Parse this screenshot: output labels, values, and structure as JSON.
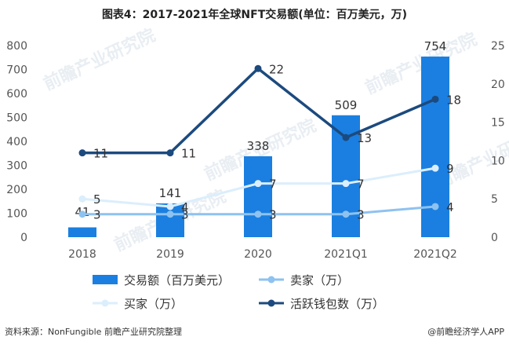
{
  "title": "图表4：2017-2021年全球NFT交易额(单位：百万美元，万)",
  "source": "资料来源：NonFungible 前瞻产业研究院整理",
  "brand": "@前瞻经济学人APP",
  "watermark": "前瞻产业研究院",
  "colors": {
    "bar": "#1a7fe0",
    "sellers": "#8ec2f0",
    "buyers": "#dbeefc",
    "wallets": "#1c4a7e"
  },
  "chart_data": {
    "type": "bar",
    "categories": [
      "2018",
      "2019",
      "2020",
      "2021Q1",
      "2021Q2"
    ],
    "y_left": {
      "ylim": [
        0,
        800
      ],
      "ticks": [
        0,
        100,
        200,
        300,
        400,
        500,
        600,
        700,
        800
      ]
    },
    "y_right": {
      "ylim": [
        0,
        25
      ],
      "ticks": [
        0,
        5,
        10,
        15,
        20,
        25
      ]
    },
    "grid": false,
    "legend_position": "bottom",
    "series": [
      {
        "name": "交易额（百万美元）",
        "kind": "bar",
        "axis": "left",
        "values": [
          41,
          141,
          338,
          509,
          754
        ]
      },
      {
        "name": "卖家（万）",
        "kind": "line",
        "axis": "right",
        "values": [
          3,
          3,
          3,
          3,
          4
        ]
      },
      {
        "name": "买家（万）",
        "kind": "line",
        "axis": "right",
        "values": [
          5,
          4,
          7,
          7,
          9
        ]
      },
      {
        "name": "活跃钱包数（万）",
        "kind": "line",
        "axis": "right",
        "values": [
          11,
          11,
          22,
          13,
          18
        ]
      }
    ]
  }
}
